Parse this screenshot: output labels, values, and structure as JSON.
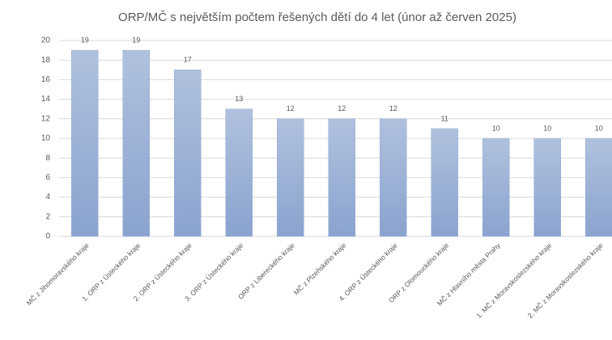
{
  "chart_data": {
    "type": "bar",
    "title": "ORP/MČ s největším počtem řešených dětí do 4  let (únor až červen 2025)",
    "categories": [
      "MČ z Jihomoravského kraje",
      "1. ORP z Ústeckého kraje",
      "2. ORP z Ústeckého kraje",
      "3. ORP z Ústeckého kraje",
      "ORP z Libereckého kraje",
      "MČ z Plzeňského kraje",
      "4. ORP z Ústeckého kraje",
      "ORP z Olomouckého kraje",
      "MČ z Hlavního města Prahy",
      "1. MČ z Moravskoslezského kraje",
      "2. MČ z Moravskoslezského kraje"
    ],
    "values": [
      19,
      19,
      17,
      13,
      12,
      12,
      12,
      11,
      10,
      10,
      10
    ],
    "color": "#95acd4",
    "ylim": [
      0,
      20
    ],
    "yticks": [
      0,
      2,
      4,
      6,
      8,
      10,
      12,
      14,
      16,
      18,
      20
    ],
    "grid": true
  }
}
